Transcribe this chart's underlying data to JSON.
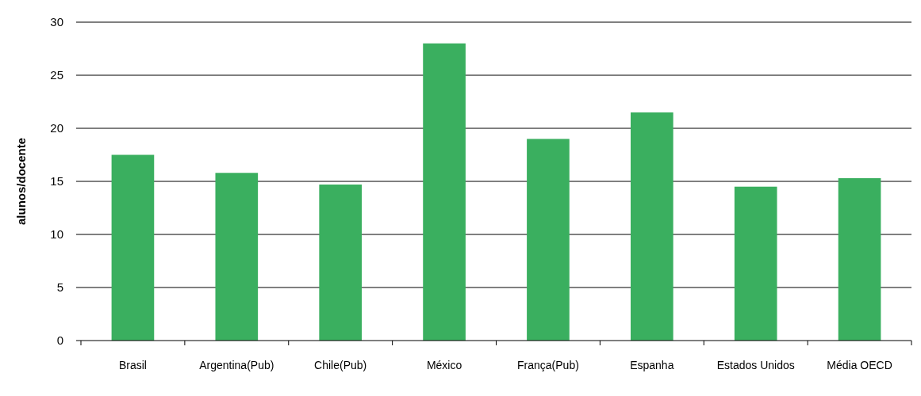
{
  "chart_data": {
    "type": "bar",
    "ylabel": "alunos/docente",
    "categories": [
      "Brasil",
      "Argentina(Pub)",
      "Chile(Pub)",
      "México",
      "França(Pub)",
      "Espanha",
      "Estados Unidos",
      "Média OECD"
    ],
    "values": [
      17.5,
      15.8,
      14.7,
      28.0,
      19.0,
      21.5,
      14.5,
      15.3
    ],
    "color": "#3aaf5f",
    "ylim": [
      0,
      30
    ],
    "yticks": [
      0,
      5,
      10,
      15,
      20,
      25,
      30
    ],
    "grid": "y"
  }
}
